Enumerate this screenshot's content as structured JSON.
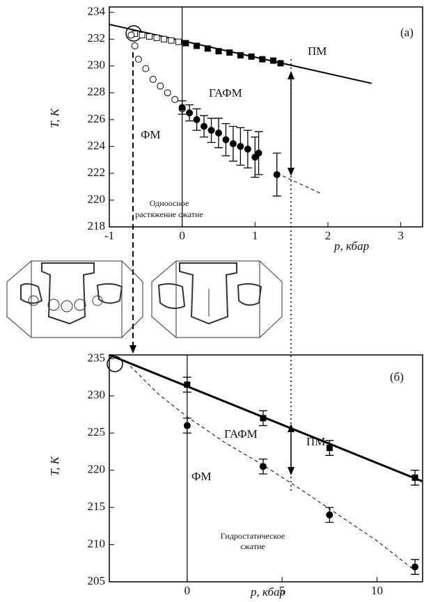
{
  "chart_data": [
    {
      "type": "scatter",
      "label": "(а)",
      "xlabel": "p, кбар",
      "ylabel": "T, К",
      "annotations": [
        "ПМ",
        "ГАФМ",
        "ФМ",
        "Одноосное",
        "растяжение  сжатие"
      ],
      "xlim": [
        -1,
        3.3
      ],
      "ylim": [
        218,
        234.4
      ],
      "xticks": [
        -1,
        0,
        1,
        2,
        3
      ],
      "yticks": [
        218,
        220,
        222,
        224,
        226,
        228,
        230,
        232,
        234
      ],
      "series": [
        {
          "marker": "square",
          "filled": false,
          "x": [
            -0.65,
            -0.55,
            -0.45,
            -0.35,
            -0.25,
            -0.15,
            -0.05
          ],
          "values": [
            232.4,
            232.3,
            232.2,
            232.1,
            232.0,
            231.9,
            231.8
          ]
        },
        {
          "marker": "square",
          "filled": true,
          "x": [
            0.05,
            0.2,
            0.35,
            0.5,
            0.65,
            0.8,
            0.95,
            1.1,
            1.25,
            1.35
          ],
          "values": [
            231.7,
            231.5,
            231.3,
            231.1,
            231.0,
            230.8,
            230.7,
            230.5,
            230.4,
            230.2
          ]
        },
        {
          "marker": "circle",
          "filled": false,
          "x": [
            -0.7,
            -0.65,
            -0.6,
            -0.5,
            -0.4,
            -0.3,
            -0.2,
            -0.1,
            0
          ],
          "values": [
            232.3,
            231.5,
            230.5,
            229.8,
            229.0,
            228.5,
            228.0,
            227.5,
            226.8
          ]
        },
        {
          "marker": "circle",
          "filled": true,
          "x": [
            0,
            0.1,
            0.2,
            0.3,
            0.4,
            0.5,
            0.6,
            0.7,
            0.8,
            0.9,
            1.0,
            1.05,
            1.3
          ],
          "values": [
            226.9,
            226.5,
            226.0,
            225.5,
            225.2,
            225.0,
            224.5,
            224.2,
            224.0,
            223.8,
            223.2,
            223.5,
            221.9
          ],
          "errors": [
            0.5,
            0.6,
            0.8,
            0.8,
            0.9,
            1.1,
            1.2,
            1.3,
            1.4,
            1.4,
            1.5,
            1.6,
            1.6
          ]
        }
      ],
      "lines": [
        {
          "style": "solid",
          "x": [
            -1,
            2.6
          ],
          "values": [
            233.1,
            228.7
          ]
        },
        {
          "style": "dashed",
          "x": [
            1.3,
            1.9
          ],
          "values": [
            222.0,
            220.5
          ]
        }
      ]
    },
    {
      "type": "scatter",
      "label": "(б)",
      "xlabel": "p, кбар",
      "ylabel": "T, К",
      "annotations": [
        "ПМ",
        "ГАФМ",
        "ФМ",
        "Гидростатическое",
        "сжатие"
      ],
      "xlim": [
        -4.1,
        12.4
      ],
      "ylim": [
        205,
        235.5
      ],
      "xticks": [
        0,
        5,
        10
      ],
      "yticks": [
        205,
        210,
        215,
        220,
        225,
        230,
        235
      ],
      "series": [
        {
          "marker": "square",
          "filled": true,
          "x": [
            0,
            4,
            7.5,
            12
          ],
          "values": [
            231.5,
            227,
            223,
            219
          ],
          "errors": [
            1,
            1,
            1,
            1
          ]
        },
        {
          "marker": "circle",
          "filled": true,
          "x": [
            0,
            4,
            7.5,
            12
          ],
          "values": [
            226,
            220.5,
            214,
            207
          ],
          "errors": [
            1,
            1,
            1,
            1
          ]
        }
      ],
      "lines": [
        {
          "style": "thick",
          "x": [
            -4.1,
            12.4
          ],
          "values": [
            235.5,
            218.5
          ]
        },
        {
          "style": "dashed",
          "x": [
            -3,
            -1.5,
            0,
            2,
            4,
            6,
            7.5,
            10,
            12
          ],
          "values": [
            234,
            230.2,
            227.2,
            223.7,
            220.7,
            217.4,
            214.8,
            210.5,
            206.5
          ]
        }
      ]
    }
  ]
}
